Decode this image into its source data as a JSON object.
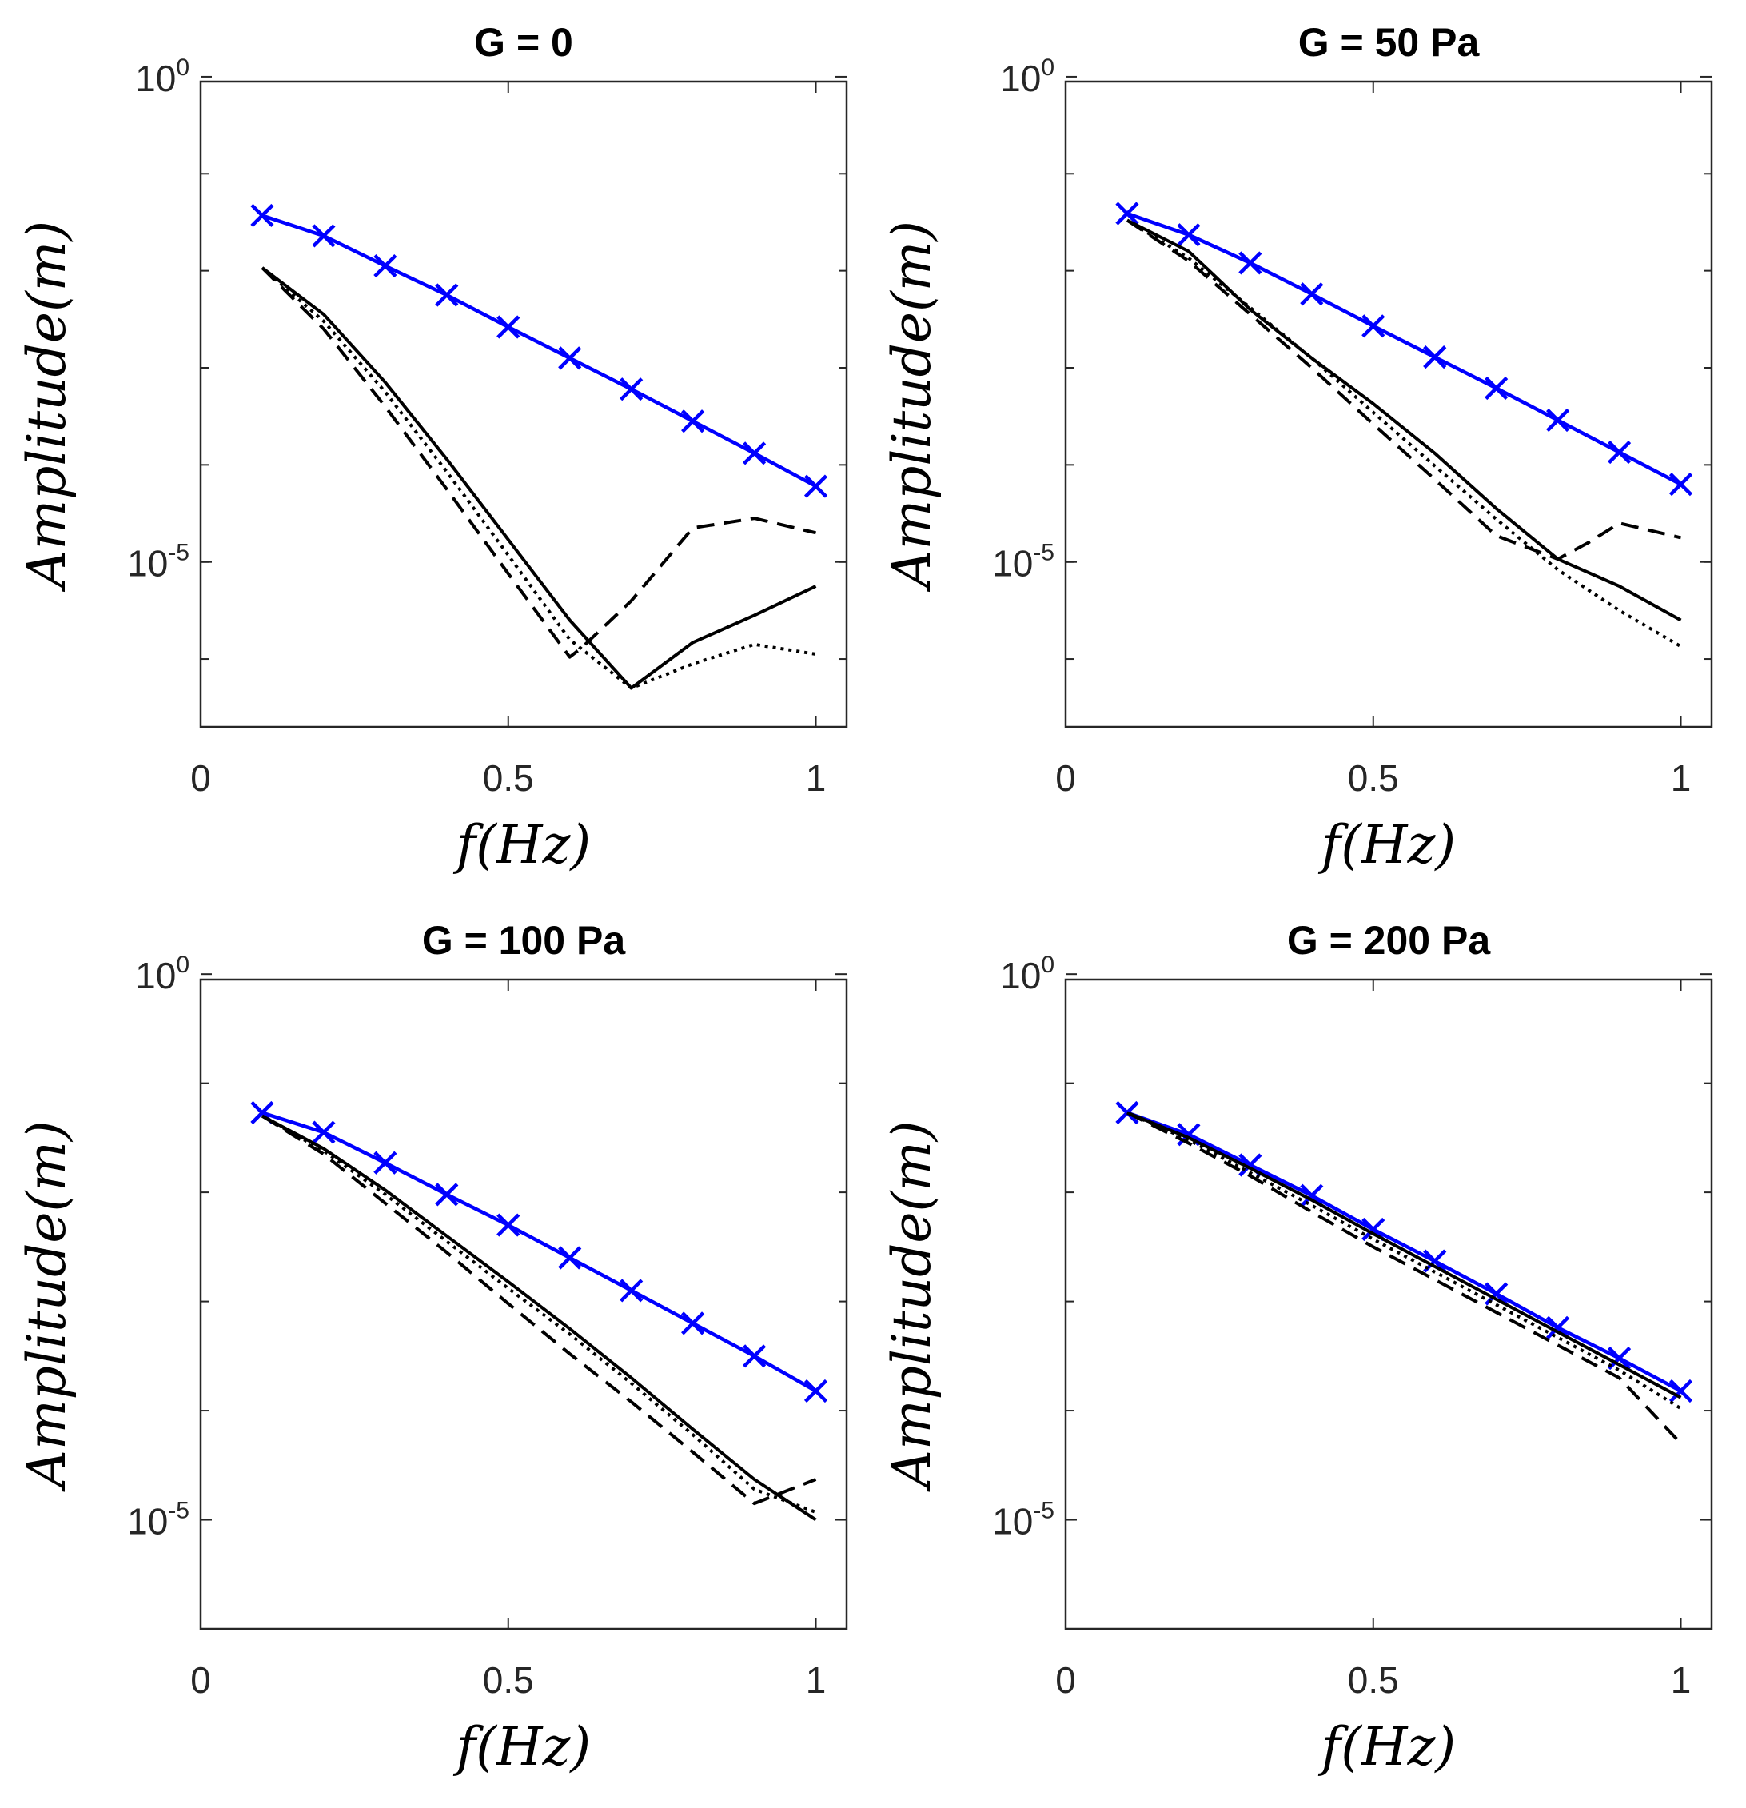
{
  "chart_data": [
    {
      "type": "line",
      "title": "G = 0",
      "xlabel": "f(Hz)",
      "ylabel": "Amplitude(m)",
      "xlim": [
        0,
        1.05
      ],
      "ylim_log10": [
        -6.7,
        -0.05
      ],
      "x_ticks": [
        "0",
        "0.5",
        "1"
      ],
      "y_ticks": [
        {
          "base": "10",
          "exp": "0"
        },
        {
          "base": "10",
          "exp": "-5"
        }
      ],
      "series": [
        {
          "name": "blue-x",
          "color": "#0000ff",
          "style": "solid",
          "marker": "x",
          "x": [
            0.1,
            0.2,
            0.3,
            0.4,
            0.5,
            0.6,
            0.7,
            0.8,
            0.9,
            1.0
          ],
          "y_log10": [
            -1.43,
            -1.64,
            -1.95,
            -2.25,
            -2.58,
            -2.9,
            -3.22,
            -3.55,
            -3.88,
            -4.22
          ]
        },
        {
          "name": "solid",
          "color": "#000000",
          "style": "solid",
          "x": [
            0.1,
            0.2,
            0.3,
            0.4,
            0.5,
            0.6,
            0.7,
            0.8,
            0.9,
            1.0
          ],
          "y_log10": [
            -1.97,
            -2.45,
            -3.15,
            -3.94,
            -4.77,
            -5.6,
            -6.3,
            -5.83,
            -5.55,
            -5.25
          ]
        },
        {
          "name": "dashed",
          "color": "#000000",
          "style": "dashed",
          "x": [
            0.1,
            0.2,
            0.3,
            0.4,
            0.5,
            0.6,
            0.62,
            0.7,
            0.8,
            0.9,
            1.0
          ],
          "y_log10": [
            -1.97,
            -2.6,
            -3.4,
            -4.25,
            -5.12,
            -5.98,
            -5.88,
            -5.4,
            -4.65,
            -4.55,
            -4.7
          ]
        },
        {
          "name": "dotted",
          "color": "#000000",
          "style": "dotted",
          "x": [
            0.1,
            0.2,
            0.3,
            0.4,
            0.5,
            0.6,
            0.7,
            0.8,
            0.9,
            1.0
          ],
          "y_log10": [
            -1.97,
            -2.52,
            -3.25,
            -4.07,
            -4.93,
            -5.8,
            -6.3,
            -6.05,
            -5.85,
            -5.95
          ]
        }
      ]
    },
    {
      "type": "line",
      "title": "G = 50 Pa",
      "xlabel": "f(Hz)",
      "ylabel": "Amplitude(m)",
      "xlim": [
        0,
        1.05
      ],
      "ylim_log10": [
        -6.7,
        -0.05
      ],
      "x_ticks": [
        "0",
        "0.5",
        "1"
      ],
      "y_ticks": [
        {
          "base": "10",
          "exp": "0"
        },
        {
          "base": "10",
          "exp": "-5"
        }
      ],
      "series": [
        {
          "name": "blue-x",
          "color": "#0000ff",
          "style": "solid",
          "marker": "x",
          "x": [
            0.1,
            0.2,
            0.3,
            0.4,
            0.5,
            0.6,
            0.7,
            0.8,
            0.9,
            1.0
          ],
          "y_log10": [
            -1.41,
            -1.63,
            -1.92,
            -2.24,
            -2.57,
            -2.89,
            -3.21,
            -3.54,
            -3.87,
            -4.2
          ]
        },
        {
          "name": "solid",
          "color": "#000000",
          "style": "solid",
          "x": [
            0.1,
            0.2,
            0.3,
            0.4,
            0.5,
            0.6,
            0.7,
            0.8,
            0.9,
            1.0
          ],
          "y_log10": [
            -1.48,
            -1.8,
            -2.4,
            -2.9,
            -3.37,
            -3.88,
            -4.45,
            -4.97,
            -5.25,
            -5.6
          ]
        },
        {
          "name": "dashed",
          "color": "#000000",
          "style": "dashed",
          "x": [
            0.1,
            0.2,
            0.3,
            0.4,
            0.5,
            0.6,
            0.7,
            0.8,
            0.85,
            0.9,
            1.0
          ],
          "y_log10": [
            -1.48,
            -1.9,
            -2.45,
            -3.0,
            -3.58,
            -4.15,
            -4.73,
            -4.97,
            -4.8,
            -4.6,
            -4.75
          ]
        },
        {
          "name": "dotted",
          "color": "#000000",
          "style": "dotted",
          "x": [
            0.1,
            0.2,
            0.3,
            0.4,
            0.5,
            0.6,
            0.7,
            0.8,
            0.9,
            1.0
          ],
          "y_log10": [
            -1.48,
            -1.87,
            -2.38,
            -2.9,
            -3.46,
            -4.01,
            -4.56,
            -5.08,
            -5.5,
            -5.87
          ]
        }
      ]
    },
    {
      "type": "line",
      "title": "G = 100 Pa",
      "xlabel": "f(Hz)",
      "ylabel": "Amplitude(m)",
      "xlim": [
        0,
        1.05
      ],
      "ylim_log10": [
        -6.0,
        -0.05
      ],
      "x_ticks": [
        "0",
        "0.5",
        "1"
      ],
      "y_ticks": [
        {
          "base": "10",
          "exp": "0"
        },
        {
          "base": "10",
          "exp": "-5"
        }
      ],
      "series": [
        {
          "name": "blue-x",
          "color": "#0000ff",
          "style": "solid",
          "marker": "x",
          "x": [
            0.1,
            0.2,
            0.3,
            0.4,
            0.5,
            0.6,
            0.7,
            0.8,
            0.9,
            1.0
          ],
          "y_log10": [
            -1.27,
            -1.45,
            -1.73,
            -2.02,
            -2.3,
            -2.6,
            -2.9,
            -3.2,
            -3.5,
            -3.82
          ]
        },
        {
          "name": "solid",
          "color": "#000000",
          "style": "solid",
          "x": [
            0.1,
            0.2,
            0.3,
            0.4,
            0.5,
            0.6,
            0.7,
            0.8,
            0.9,
            1.0
          ],
          "y_log10": [
            -1.3,
            -1.6,
            -1.98,
            -2.4,
            -2.82,
            -3.25,
            -3.7,
            -4.17,
            -4.63,
            -5.0
          ]
        },
        {
          "name": "dashed",
          "color": "#000000",
          "style": "dashed",
          "x": [
            0.1,
            0.2,
            0.3,
            0.4,
            0.5,
            0.6,
            0.7,
            0.8,
            0.9,
            1.0
          ],
          "y_log10": [
            -1.3,
            -1.65,
            -2.1,
            -2.55,
            -3.02,
            -3.48,
            -3.92,
            -4.38,
            -4.85,
            -4.63
          ]
        },
        {
          "name": "dotted",
          "color": "#000000",
          "style": "dotted",
          "x": [
            0.1,
            0.2,
            0.3,
            0.4,
            0.5,
            0.6,
            0.7,
            0.8,
            0.9,
            1.0
          ],
          "y_log10": [
            -1.3,
            -1.62,
            -2.02,
            -2.45,
            -2.88,
            -3.3,
            -3.75,
            -4.22,
            -4.72,
            -4.93
          ]
        }
      ]
    },
    {
      "type": "line",
      "title": "G = 200 Pa",
      "xlabel": "f(Hz)",
      "ylabel": "Amplitude(m)",
      "xlim": [
        0,
        1.05
      ],
      "ylim_log10": [
        -6.0,
        -0.05
      ],
      "x_ticks": [
        "0",
        "0.5",
        "1"
      ],
      "y_ticks": [
        {
          "base": "10",
          "exp": "0"
        },
        {
          "base": "10",
          "exp": "-5"
        }
      ],
      "series": [
        {
          "name": "blue-x",
          "color": "#0000ff",
          "style": "solid",
          "marker": "x",
          "x": [
            0.1,
            0.2,
            0.3,
            0.4,
            0.5,
            0.6,
            0.7,
            0.8,
            0.9,
            1.0
          ],
          "y_log10": [
            -1.27,
            -1.47,
            -1.75,
            -2.03,
            -2.34,
            -2.63,
            -2.93,
            -3.24,
            -3.52,
            -3.82
          ]
        },
        {
          "name": "solid",
          "color": "#000000",
          "style": "solid",
          "x": [
            0.1,
            0.2,
            0.3,
            0.4,
            0.5,
            0.6,
            0.7,
            0.8,
            0.9,
            1.0
          ],
          "y_log10": [
            -1.27,
            -1.5,
            -1.78,
            -2.07,
            -2.38,
            -2.68,
            -2.98,
            -3.28,
            -3.58,
            -3.88
          ]
        },
        {
          "name": "dashed",
          "color": "#000000",
          "style": "dashed",
          "x": [
            0.1,
            0.2,
            0.3,
            0.4,
            0.5,
            0.6,
            0.7,
            0.8,
            0.9,
            1.0
          ],
          "y_log10": [
            -1.27,
            -1.55,
            -1.85,
            -2.18,
            -2.5,
            -2.8,
            -3.1,
            -3.4,
            -3.7,
            -4.3
          ]
        },
        {
          "name": "dotted",
          "color": "#000000",
          "style": "dotted",
          "x": [
            0.1,
            0.2,
            0.3,
            0.4,
            0.5,
            0.6,
            0.7,
            0.8,
            0.9,
            1.0
          ],
          "y_log10": [
            -1.27,
            -1.52,
            -1.82,
            -2.12,
            -2.43,
            -2.73,
            -3.03,
            -3.33,
            -3.63,
            -3.98
          ]
        }
      ]
    }
  ]
}
